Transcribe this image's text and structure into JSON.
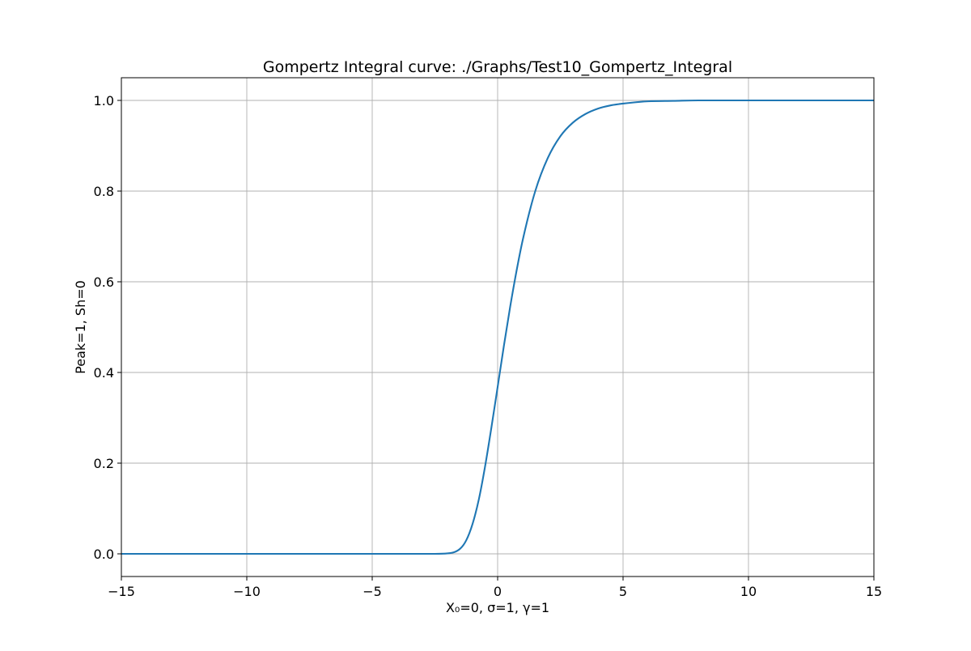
{
  "chart_data": {
    "type": "line",
    "title": "Gompertz Integral curve: ./Graphs/Test10_Gompertz_Integral",
    "xlabel": "X₀=0, σ=1, γ=1",
    "ylabel": "Peak=1, Sh=0",
    "xlim": [
      -15,
      15
    ],
    "ylim": [
      -0.05,
      1.05
    ],
    "xticks": [
      -15,
      -10,
      -5,
      0,
      5,
      10,
      15
    ],
    "xtick_labels": [
      "−15",
      "−10",
      "−5",
      "0",
      "5",
      "10",
      "15"
    ],
    "yticks": [
      0.0,
      0.2,
      0.4,
      0.6,
      0.8,
      1.0
    ],
    "ytick_labels": [
      "0.0",
      "0.2",
      "0.4",
      "0.6",
      "0.8",
      "1.0"
    ],
    "grid": true,
    "series": [
      {
        "color": "#1f77b4",
        "x": [
          -15,
          -10,
          -5,
          -2.5,
          -2,
          -1.5,
          -1.25,
          -1,
          -0.75,
          -0.5,
          -0.25,
          0,
          0.25,
          0.5,
          0.75,
          1,
          1.5,
          2,
          2.5,
          3,
          3.5,
          4,
          4.5,
          5,
          6,
          7,
          8,
          10,
          15
        ],
        "y": [
          0.0,
          0.0,
          0.0,
          0.0,
          0.001,
          0.011,
          0.03,
          0.066,
          0.12,
          0.193,
          0.278,
          0.368,
          0.459,
          0.545,
          0.623,
          0.692,
          0.8,
          0.873,
          0.921,
          0.951,
          0.97,
          0.982,
          0.989,
          0.993,
          0.998,
          0.999,
          1.0,
          1.0,
          1.0
        ]
      }
    ]
  }
}
